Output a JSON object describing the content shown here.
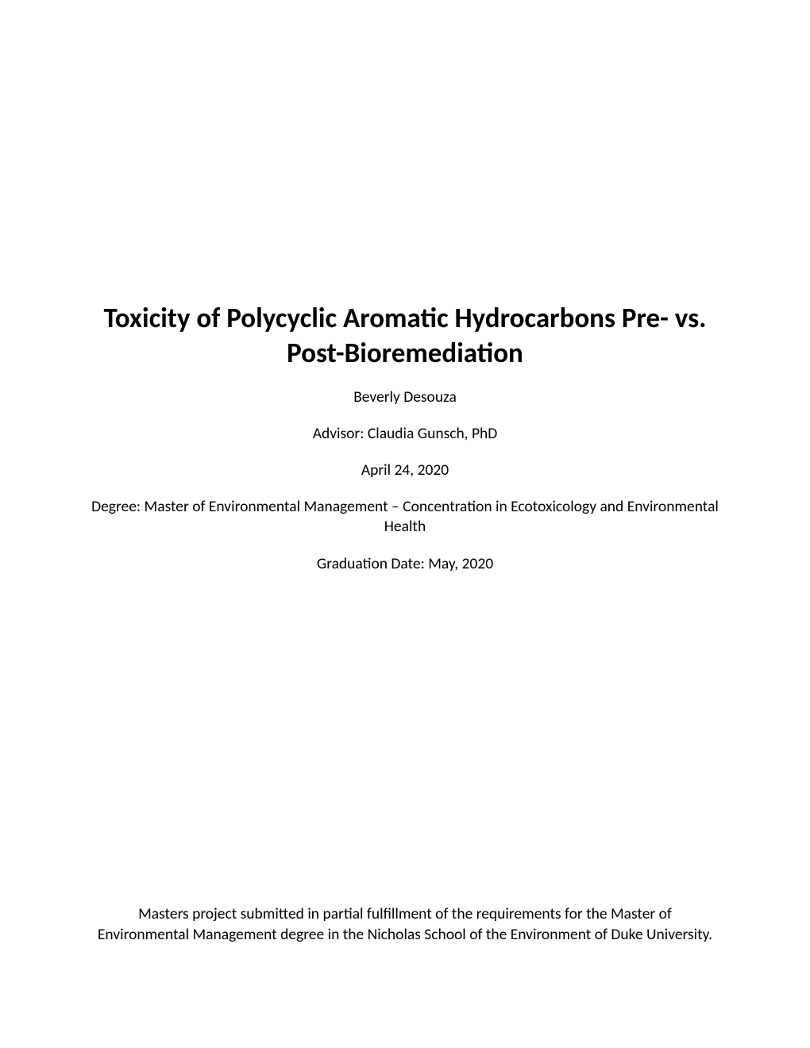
{
  "title": "Toxicity of Polycyclic Aromatic Hydrocarbons Pre- vs. Post-Bioremediation",
  "author": "Beverly Desouza",
  "advisor": "Advisor: Claudia Gunsch, PhD",
  "date": "April 24, 2020",
  "degree": "Degree: Master of Environmental Management – Concentration in Ecotoxicology and Environmental Health",
  "graduation": "Graduation Date: May, 2020",
  "footer": "Masters project submitted in partial fulfillment of the requirements for the Master of Environmental Management degree in the Nicholas School of the Environment of Duke University.",
  "colors": {
    "background": "#ffffff",
    "text": "#000000"
  },
  "typography": {
    "title_fontsize": 35,
    "title_weight": "bold",
    "body_fontsize": 19.5,
    "font_family": "Calibri"
  }
}
